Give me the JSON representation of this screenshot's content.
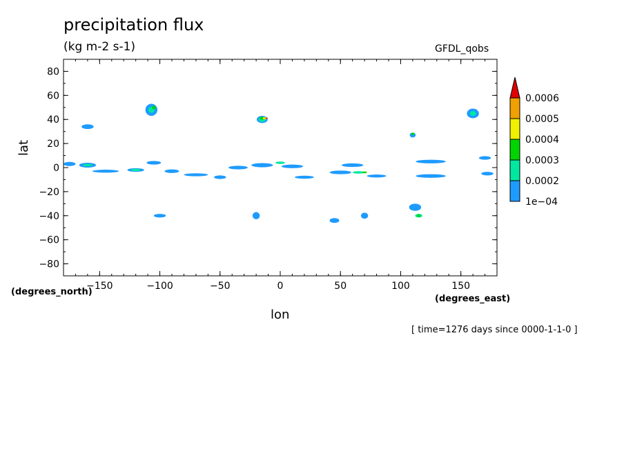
{
  "chart_data": {
    "type": "heatmap",
    "title": "precipitation flux",
    "units": "(kg m-2 s-1)",
    "source": "GFDL_qobs",
    "xlabel": "lon",
    "ylabel": "lat",
    "x_units_label": "(degrees_east)",
    "y_units_label": "(degrees_north)",
    "timestamp": "[ time=1276 days since 0000-1-1-0 ]",
    "xlim": [
      -180,
      180
    ],
    "ylim": [
      -90,
      90
    ],
    "x_ticks": [
      -150,
      -100,
      -50,
      0,
      50,
      100,
      150
    ],
    "x_tick_labels": [
      "-150",
      "-100",
      "-50",
      "0",
      "50",
      "100",
      "150"
    ],
    "y_ticks": [
      80,
      60,
      40,
      20,
      0,
      -20,
      -40,
      -60,
      -80
    ],
    "y_tick_labels": [
      "80",
      "60",
      "40",
      "20",
      "0",
      "-20",
      "-40",
      "-60",
      "-80"
    ],
    "colorbar": {
      "levels": [
        0.0001,
        0.0002,
        0.0003,
        0.0004,
        0.0005,
        0.0006
      ],
      "labels": [
        "1e-04",
        "0.0002",
        "0.0003",
        "0.0004",
        "0.0005",
        "0.0006"
      ],
      "colors": [
        "#1e9bff",
        "#00e8a0",
        "#00d400",
        "#f0f000",
        "#f0a000",
        "#e00000"
      ],
      "extend": "max"
    },
    "blobs": [
      {
        "lon": -175,
        "lat": 3,
        "w": 10,
        "h": 3.5,
        "level": 0
      },
      {
        "lon": -160,
        "lat": 2,
        "w": 14,
        "h": 4,
        "level": 0
      },
      {
        "lon": -145,
        "lat": -3,
        "w": 22,
        "h": 2.5,
        "level": 0
      },
      {
        "lon": -120,
        "lat": -2,
        "w": 14,
        "h": 3,
        "level": 0
      },
      {
        "lon": -105,
        "lat": 4,
        "w": 12,
        "h": 3,
        "level": 0
      },
      {
        "lon": -90,
        "lat": -3,
        "w": 12,
        "h": 3,
        "level": 0
      },
      {
        "lon": -70,
        "lat": -6,
        "w": 20,
        "h": 2.5,
        "level": 0
      },
      {
        "lon": -50,
        "lat": -8,
        "w": 10,
        "h": 3,
        "level": 0
      },
      {
        "lon": -35,
        "lat": 0,
        "w": 16,
        "h": 3,
        "level": 0
      },
      {
        "lon": -15,
        "lat": 2,
        "w": 18,
        "h": 3.5,
        "level": 0
      },
      {
        "lon": 10,
        "lat": 1,
        "w": 18,
        "h": 3,
        "level": 0
      },
      {
        "lon": 20,
        "lat": -8,
        "w": 16,
        "h": 2.5,
        "level": 0
      },
      {
        "lon": 50,
        "lat": -4,
        "w": 18,
        "h": 3,
        "level": 0
      },
      {
        "lon": 60,
        "lat": 2,
        "w": 18,
        "h": 3,
        "level": 0
      },
      {
        "lon": 80,
        "lat": -7,
        "w": 16,
        "h": 2.5,
        "level": 0
      },
      {
        "lon": 125,
        "lat": 5,
        "w": 25,
        "h": 3,
        "level": 0
      },
      {
        "lon": 125,
        "lat": -7,
        "w": 25,
        "h": 3,
        "level": 0
      },
      {
        "lon": 170,
        "lat": 8,
        "w": 10,
        "h": 3,
        "level": 0
      },
      {
        "lon": 172,
        "lat": -5,
        "w": 10,
        "h": 3,
        "level": 0
      },
      {
        "lon": -160,
        "lat": 34,
        "w": 10,
        "h": 4,
        "level": 0
      },
      {
        "lon": -107,
        "lat": 48,
        "w": 10,
        "h": 10,
        "level": 0
      },
      {
        "lon": -15,
        "lat": 40,
        "w": 9,
        "h": 6,
        "level": 0
      },
      {
        "lon": 110,
        "lat": 27,
        "w": 5,
        "h": 4,
        "level": 0
      },
      {
        "lon": 160,
        "lat": 45,
        "w": 10,
        "h": 8,
        "level": 0
      },
      {
        "lon": 112,
        "lat": -33,
        "w": 10,
        "h": 6,
        "level": 0
      },
      {
        "lon": -20,
        "lat": -40,
        "w": 6,
        "h": 6,
        "level": 0
      },
      {
        "lon": 45,
        "lat": -44,
        "w": 8,
        "h": 4,
        "level": 0
      },
      {
        "lon": 70,
        "lat": -40,
        "w": 6,
        "h": 5,
        "level": 0
      },
      {
        "lon": -100,
        "lat": -40,
        "w": 10,
        "h": 3,
        "level": 0
      },
      {
        "lon": -160,
        "lat": 2,
        "w": 8,
        "h": 2,
        "level": 1
      },
      {
        "lon": -120,
        "lat": -2,
        "w": 8,
        "h": 2,
        "level": 1
      },
      {
        "lon": -107,
        "lat": 48,
        "w": 5,
        "h": 5,
        "level": 1
      },
      {
        "lon": -15,
        "lat": 40,
        "w": 6,
        "h": 4,
        "level": 1
      },
      {
        "lon": 0,
        "lat": 4,
        "w": 8,
        "h": 2,
        "level": 1
      },
      {
        "lon": 65,
        "lat": -4,
        "w": 10,
        "h": 2,
        "level": 1
      },
      {
        "lon": 115,
        "lat": -40,
        "w": 6,
        "h": 3,
        "level": 1
      },
      {
        "lon": 160,
        "lat": 45,
        "w": 5,
        "h": 4,
        "level": 1
      },
      {
        "lon": -15,
        "lat": 41,
        "w": 4,
        "h": 2.5,
        "level": 2
      },
      {
        "lon": -105,
        "lat": 50,
        "w": 3,
        "h": 3,
        "level": 2
      },
      {
        "lon": 110,
        "lat": 28,
        "w": 2.5,
        "h": 2,
        "level": 2
      },
      {
        "lon": 115,
        "lat": -40,
        "w": 3,
        "h": 2,
        "level": 2
      },
      {
        "lon": 70,
        "lat": -4,
        "w": 4,
        "h": 1.5,
        "level": 2
      },
      {
        "lon": -13,
        "lat": 41,
        "w": 3,
        "h": 1.8,
        "level": 3
      },
      {
        "lon": -12,
        "lat": 41,
        "w": 2,
        "h": 1.3,
        "level": 4
      },
      {
        "lon": -11,
        "lat": 41,
        "w": 1.2,
        "h": 0.9,
        "level": 5
      }
    ]
  }
}
